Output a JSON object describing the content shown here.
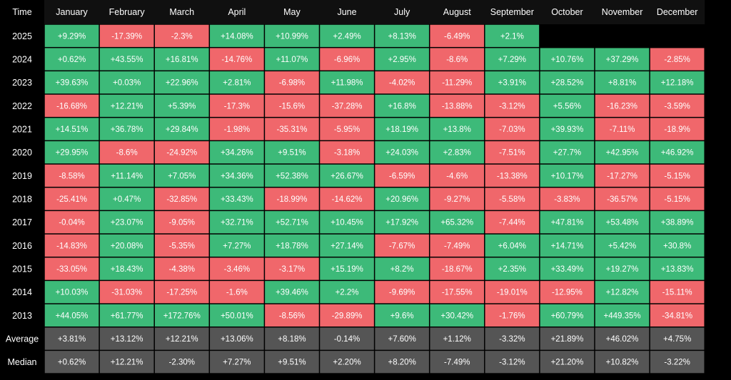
{
  "chart_data": {
    "type": "heatmap",
    "corner_label": "Time",
    "columns": [
      "January",
      "February",
      "March",
      "April",
      "May",
      "June",
      "July",
      "August",
      "September",
      "October",
      "November",
      "December"
    ],
    "rows": [
      {
        "label": "2025",
        "kind": "year",
        "values": [
          "+9.29%",
          "-17.39%",
          "-2.3%",
          "+14.08%",
          "+10.99%",
          "+2.49%",
          "+8.13%",
          "-6.49%",
          "+2.1%",
          null,
          null,
          null
        ]
      },
      {
        "label": "2024",
        "kind": "year",
        "values": [
          "+0.62%",
          "+43.55%",
          "+16.81%",
          "-14.76%",
          "+11.07%",
          "-6.96%",
          "+2.95%",
          "-8.6%",
          "+7.29%",
          "+10.76%",
          "+37.29%",
          "-2.85%"
        ]
      },
      {
        "label": "2023",
        "kind": "year",
        "values": [
          "+39.63%",
          "+0.03%",
          "+22.96%",
          "+2.81%",
          "-6.98%",
          "+11.98%",
          "-4.02%",
          "-11.29%",
          "+3.91%",
          "+28.52%",
          "+8.81%",
          "+12.18%"
        ]
      },
      {
        "label": "2022",
        "kind": "year",
        "values": [
          "-16.68%",
          "+12.21%",
          "+5.39%",
          "-17.3%",
          "-15.6%",
          "-37.28%",
          "+16.8%",
          "-13.88%",
          "-3.12%",
          "+5.56%",
          "-16.23%",
          "-3.59%"
        ]
      },
      {
        "label": "2021",
        "kind": "year",
        "values": [
          "+14.51%",
          "+36.78%",
          "+29.84%",
          "-1.98%",
          "-35.31%",
          "-5.95%",
          "+18.19%",
          "+13.8%",
          "-7.03%",
          "+39.93%",
          "-7.11%",
          "-18.9%"
        ]
      },
      {
        "label": "2020",
        "kind": "year",
        "values": [
          "+29.95%",
          "-8.6%",
          "-24.92%",
          "+34.26%",
          "+9.51%",
          "-3.18%",
          "+24.03%",
          "+2.83%",
          "-7.51%",
          "+27.7%",
          "+42.95%",
          "+46.92%"
        ]
      },
      {
        "label": "2019",
        "kind": "year",
        "values": [
          "-8.58%",
          "+11.14%",
          "+7.05%",
          "+34.36%",
          "+52.38%",
          "+26.67%",
          "-6.59%",
          "-4.6%",
          "-13.38%",
          "+10.17%",
          "-17.27%",
          "-5.15%"
        ]
      },
      {
        "label": "2018",
        "kind": "year",
        "values": [
          "-25.41%",
          "+0.47%",
          "-32.85%",
          "+33.43%",
          "-18.99%",
          "-14.62%",
          "+20.96%",
          "-9.27%",
          "-5.58%",
          "-3.83%",
          "-36.57%",
          "-5.15%"
        ]
      },
      {
        "label": "2017",
        "kind": "year",
        "values": [
          "-0.04%",
          "+23.07%",
          "-9.05%",
          "+32.71%",
          "+52.71%",
          "+10.45%",
          "+17.92%",
          "+65.32%",
          "-7.44%",
          "+47.81%",
          "+53.48%",
          "+38.89%"
        ]
      },
      {
        "label": "2016",
        "kind": "year",
        "values": [
          "-14.83%",
          "+20.08%",
          "-5.35%",
          "+7.27%",
          "+18.78%",
          "+27.14%",
          "-7.67%",
          "-7.49%",
          "+6.04%",
          "+14.71%",
          "+5.42%",
          "+30.8%"
        ]
      },
      {
        "label": "2015",
        "kind": "year",
        "values": [
          "-33.05%",
          "+18.43%",
          "-4.38%",
          "-3.46%",
          "-3.17%",
          "+15.19%",
          "+8.2%",
          "-18.67%",
          "+2.35%",
          "+33.49%",
          "+19.27%",
          "+13.83%"
        ]
      },
      {
        "label": "2014",
        "kind": "year",
        "values": [
          "+10.03%",
          "-31.03%",
          "-17.25%",
          "-1.6%",
          "+39.46%",
          "+2.2%",
          "-9.69%",
          "-17.55%",
          "-19.01%",
          "-12.95%",
          "+12.82%",
          "-15.11%"
        ]
      },
      {
        "label": "2013",
        "kind": "year",
        "values": [
          "+44.05%",
          "+61.77%",
          "+172.76%",
          "+50.01%",
          "-8.56%",
          "-29.89%",
          "+9.6%",
          "+30.42%",
          "-1.76%",
          "+60.79%",
          "+449.35%",
          "-34.81%"
        ]
      },
      {
        "label": "Average",
        "kind": "summary",
        "values": [
          "+3.81%",
          "+13.12%",
          "+12.21%",
          "+13.06%",
          "+8.18%",
          "-0.14%",
          "+7.60%",
          "+1.12%",
          "-3.32%",
          "+21.89%",
          "+46.02%",
          "+4.75%"
        ]
      },
      {
        "label": "Median",
        "kind": "summary",
        "values": [
          "+0.62%",
          "+12.21%",
          "-2.30%",
          "+7.27%",
          "+9.51%",
          "+2.20%",
          "+8.20%",
          "-7.49%",
          "-3.12%",
          "+21.20%",
          "+10.82%",
          "-3.22%"
        ]
      }
    ],
    "colors": {
      "positive": "#3dba79",
      "negative": "#f0676b",
      "summary": "#555555",
      "header": "#101010",
      "background": "#000000",
      "text": "#ffffff"
    }
  }
}
